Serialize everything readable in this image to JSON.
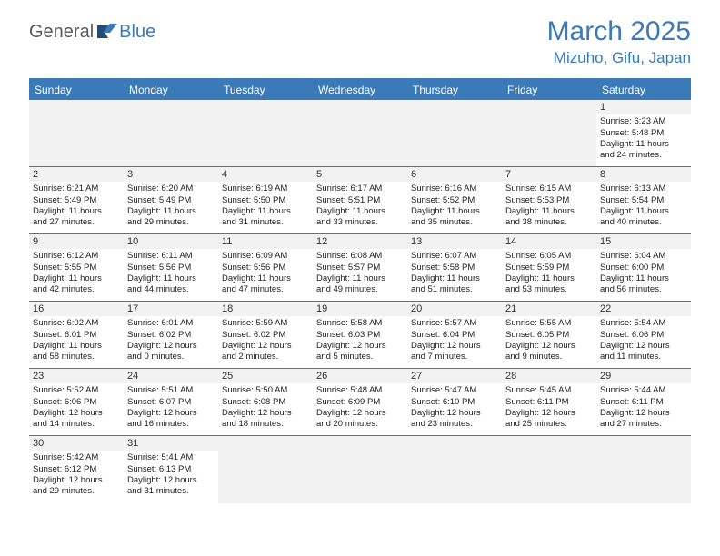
{
  "logo": {
    "text_general": "General",
    "text_blue": "Blue"
  },
  "title": "March 2025",
  "location": "Mizuho, Gifu, Japan",
  "colors": {
    "accent": "#3b7ab8",
    "header_bg": "#3b7ab8",
    "daynum_bg": "#f2f2f2",
    "text": "#222222"
  },
  "weekdays": [
    "Sunday",
    "Monday",
    "Tuesday",
    "Wednesday",
    "Thursday",
    "Friday",
    "Saturday"
  ],
  "layout": {
    "columns": 7,
    "rows": 6,
    "spacer_row_first": true
  },
  "weeks": [
    [
      null,
      null,
      null,
      null,
      null,
      null,
      {
        "n": "1",
        "sunrise": "6:23 AM",
        "sunset": "5:48 PM",
        "dh": "11",
        "dm": "24"
      }
    ],
    [
      {
        "n": "2",
        "sunrise": "6:21 AM",
        "sunset": "5:49 PM",
        "dh": "11",
        "dm": "27"
      },
      {
        "n": "3",
        "sunrise": "6:20 AM",
        "sunset": "5:49 PM",
        "dh": "11",
        "dm": "29"
      },
      {
        "n": "4",
        "sunrise": "6:19 AM",
        "sunset": "5:50 PM",
        "dh": "11",
        "dm": "31"
      },
      {
        "n": "5",
        "sunrise": "6:17 AM",
        "sunset": "5:51 PM",
        "dh": "11",
        "dm": "33"
      },
      {
        "n": "6",
        "sunrise": "6:16 AM",
        "sunset": "5:52 PM",
        "dh": "11",
        "dm": "35"
      },
      {
        "n": "7",
        "sunrise": "6:15 AM",
        "sunset": "5:53 PM",
        "dh": "11",
        "dm": "38"
      },
      {
        "n": "8",
        "sunrise": "6:13 AM",
        "sunset": "5:54 PM",
        "dh": "11",
        "dm": "40"
      }
    ],
    [
      {
        "n": "9",
        "sunrise": "6:12 AM",
        "sunset": "5:55 PM",
        "dh": "11",
        "dm": "42"
      },
      {
        "n": "10",
        "sunrise": "6:11 AM",
        "sunset": "5:56 PM",
        "dh": "11",
        "dm": "44"
      },
      {
        "n": "11",
        "sunrise": "6:09 AM",
        "sunset": "5:56 PM",
        "dh": "11",
        "dm": "47"
      },
      {
        "n": "12",
        "sunrise": "6:08 AM",
        "sunset": "5:57 PM",
        "dh": "11",
        "dm": "49"
      },
      {
        "n": "13",
        "sunrise": "6:07 AM",
        "sunset": "5:58 PM",
        "dh": "11",
        "dm": "51"
      },
      {
        "n": "14",
        "sunrise": "6:05 AM",
        "sunset": "5:59 PM",
        "dh": "11",
        "dm": "53"
      },
      {
        "n": "15",
        "sunrise": "6:04 AM",
        "sunset": "6:00 PM",
        "dh": "11",
        "dm": "56"
      }
    ],
    [
      {
        "n": "16",
        "sunrise": "6:02 AM",
        "sunset": "6:01 PM",
        "dh": "11",
        "dm": "58"
      },
      {
        "n": "17",
        "sunrise": "6:01 AM",
        "sunset": "6:02 PM",
        "dh": "12",
        "dm": "0"
      },
      {
        "n": "18",
        "sunrise": "5:59 AM",
        "sunset": "6:02 PM",
        "dh": "12",
        "dm": "2"
      },
      {
        "n": "19",
        "sunrise": "5:58 AM",
        "sunset": "6:03 PM",
        "dh": "12",
        "dm": "5"
      },
      {
        "n": "20",
        "sunrise": "5:57 AM",
        "sunset": "6:04 PM",
        "dh": "12",
        "dm": "7"
      },
      {
        "n": "21",
        "sunrise": "5:55 AM",
        "sunset": "6:05 PM",
        "dh": "12",
        "dm": "9"
      },
      {
        "n": "22",
        "sunrise": "5:54 AM",
        "sunset": "6:06 PM",
        "dh": "12",
        "dm": "11"
      }
    ],
    [
      {
        "n": "23",
        "sunrise": "5:52 AM",
        "sunset": "6:06 PM",
        "dh": "12",
        "dm": "14"
      },
      {
        "n": "24",
        "sunrise": "5:51 AM",
        "sunset": "6:07 PM",
        "dh": "12",
        "dm": "16"
      },
      {
        "n": "25",
        "sunrise": "5:50 AM",
        "sunset": "6:08 PM",
        "dh": "12",
        "dm": "18"
      },
      {
        "n": "26",
        "sunrise": "5:48 AM",
        "sunset": "6:09 PM",
        "dh": "12",
        "dm": "20"
      },
      {
        "n": "27",
        "sunrise": "5:47 AM",
        "sunset": "6:10 PM",
        "dh": "12",
        "dm": "23"
      },
      {
        "n": "28",
        "sunrise": "5:45 AM",
        "sunset": "6:11 PM",
        "dh": "12",
        "dm": "25"
      },
      {
        "n": "29",
        "sunrise": "5:44 AM",
        "sunset": "6:11 PM",
        "dh": "12",
        "dm": "27"
      }
    ],
    [
      {
        "n": "30",
        "sunrise": "5:42 AM",
        "sunset": "6:12 PM",
        "dh": "12",
        "dm": "29"
      },
      {
        "n": "31",
        "sunrise": "5:41 AM",
        "sunset": "6:13 PM",
        "dh": "12",
        "dm": "31"
      },
      null,
      null,
      null,
      null,
      null
    ]
  ]
}
